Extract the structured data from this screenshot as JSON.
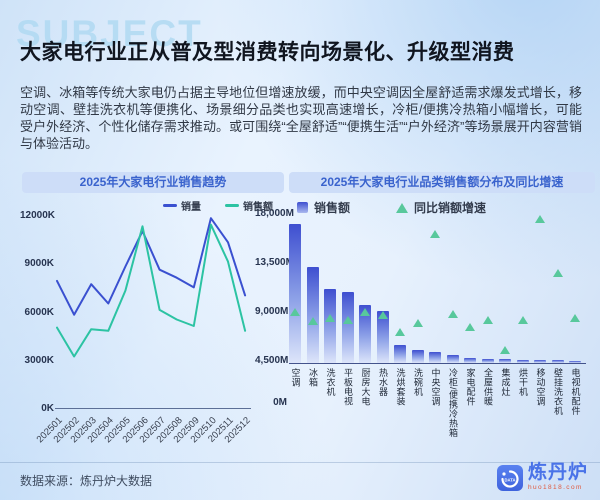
{
  "watermark": "SUBJECT",
  "title": "大家电行业正从普及型消费转向场景化、升级型消费",
  "summary": "空调、冰箱等传统大家电仍占据主导地位但增速放缓，而中央空调因全屋舒适需求爆发式增长，移动空调、壁挂洗衣机等便携化、场景细分品类也实现高速增长，冷柜/便携冷热箱小幅增长，可能受户外经济、个性化储存需求推动。或可围绕“全屋舒适”“便携生活”“户外经济”等场景展开内容营销与体验活动。",
  "footer": {
    "source": "数据来源：炼丹炉大数据",
    "brand": "炼丹炉",
    "brand_url": "huo1818.com",
    "brand_icon": "liandanlu-logo"
  },
  "colors": {
    "accent_blue": "#3a63cd",
    "line_volume": "#3a50d0",
    "line_amount": "#2cc3a3",
    "bar_top": "#3e4fd0",
    "bar_bottom": "#dde5fa",
    "triangle_green": "#58c89c",
    "logo_blue": "#4a73e8",
    "url_orange": "#e0583c"
  },
  "chart_data": [
    {
      "type": "line",
      "title": "2025年大家电行业销售趋势",
      "x": [
        "202501",
        "202502",
        "202503",
        "202504",
        "202505",
        "202506",
        "202507",
        "202508",
        "202509",
        "202510",
        "202511",
        "202512"
      ],
      "series": [
        {
          "name": "销量",
          "color": "#3a50d0",
          "values": [
            7900,
            5800,
            7700,
            6500,
            8800,
            11000,
            8600,
            8100,
            7500,
            11800,
            10300,
            7000
          ]
        },
        {
          "name": "销售额",
          "color": "#2cc3a3",
          "values": [
            5000,
            3200,
            4900,
            4800,
            7300,
            11300,
            6100,
            5500,
            5100,
            11400,
            9100,
            4800
          ]
        }
      ],
      "yticks": [
        "12000K",
        "9000K",
        "6000K",
        "3000K",
        "0K"
      ],
      "ylim": [
        0,
        12000
      ],
      "grid": false,
      "legend_position": "top"
    },
    {
      "type": "bar",
      "title": "2025年大家电行业品类销售额分布及同比增速",
      "categories": [
        "空调",
        "冰箱",
        "洗衣机",
        "平板电视",
        "厨房大电",
        "热水器",
        "洗烘套装",
        "洗碗机",
        "中央空调",
        "冷柜/便携冷热箱",
        "家电配件",
        "全屋供暖",
        "集成灶",
        "烘干机",
        "移动空调",
        "壁挂洗衣机",
        "电视机配件"
      ],
      "series": [
        {
          "name": "销售额",
          "kind": "bar",
          "unit": "M",
          "values": [
            17000,
            13000,
            11000,
            10700,
            9500,
            9000,
            5900,
            5400,
            5200,
            4900,
            4700,
            4600,
            4550,
            4500,
            4480,
            4450,
            4400
          ]
        },
        {
          "name": "同比销额增速",
          "kind": "triangle-marker",
          "relative_levels_pct": [
            34,
            28,
            30,
            29,
            34,
            32,
            21,
            27,
            86,
            33,
            24,
            29,
            9,
            29,
            96,
            60,
            30
          ]
        }
      ],
      "yticks": [
        "18,000M",
        "13,500M",
        "9,000M",
        "4,500M",
        "0M"
      ],
      "ylim": [
        0,
        18000
      ],
      "grid": false,
      "legend_position": "top"
    }
  ]
}
